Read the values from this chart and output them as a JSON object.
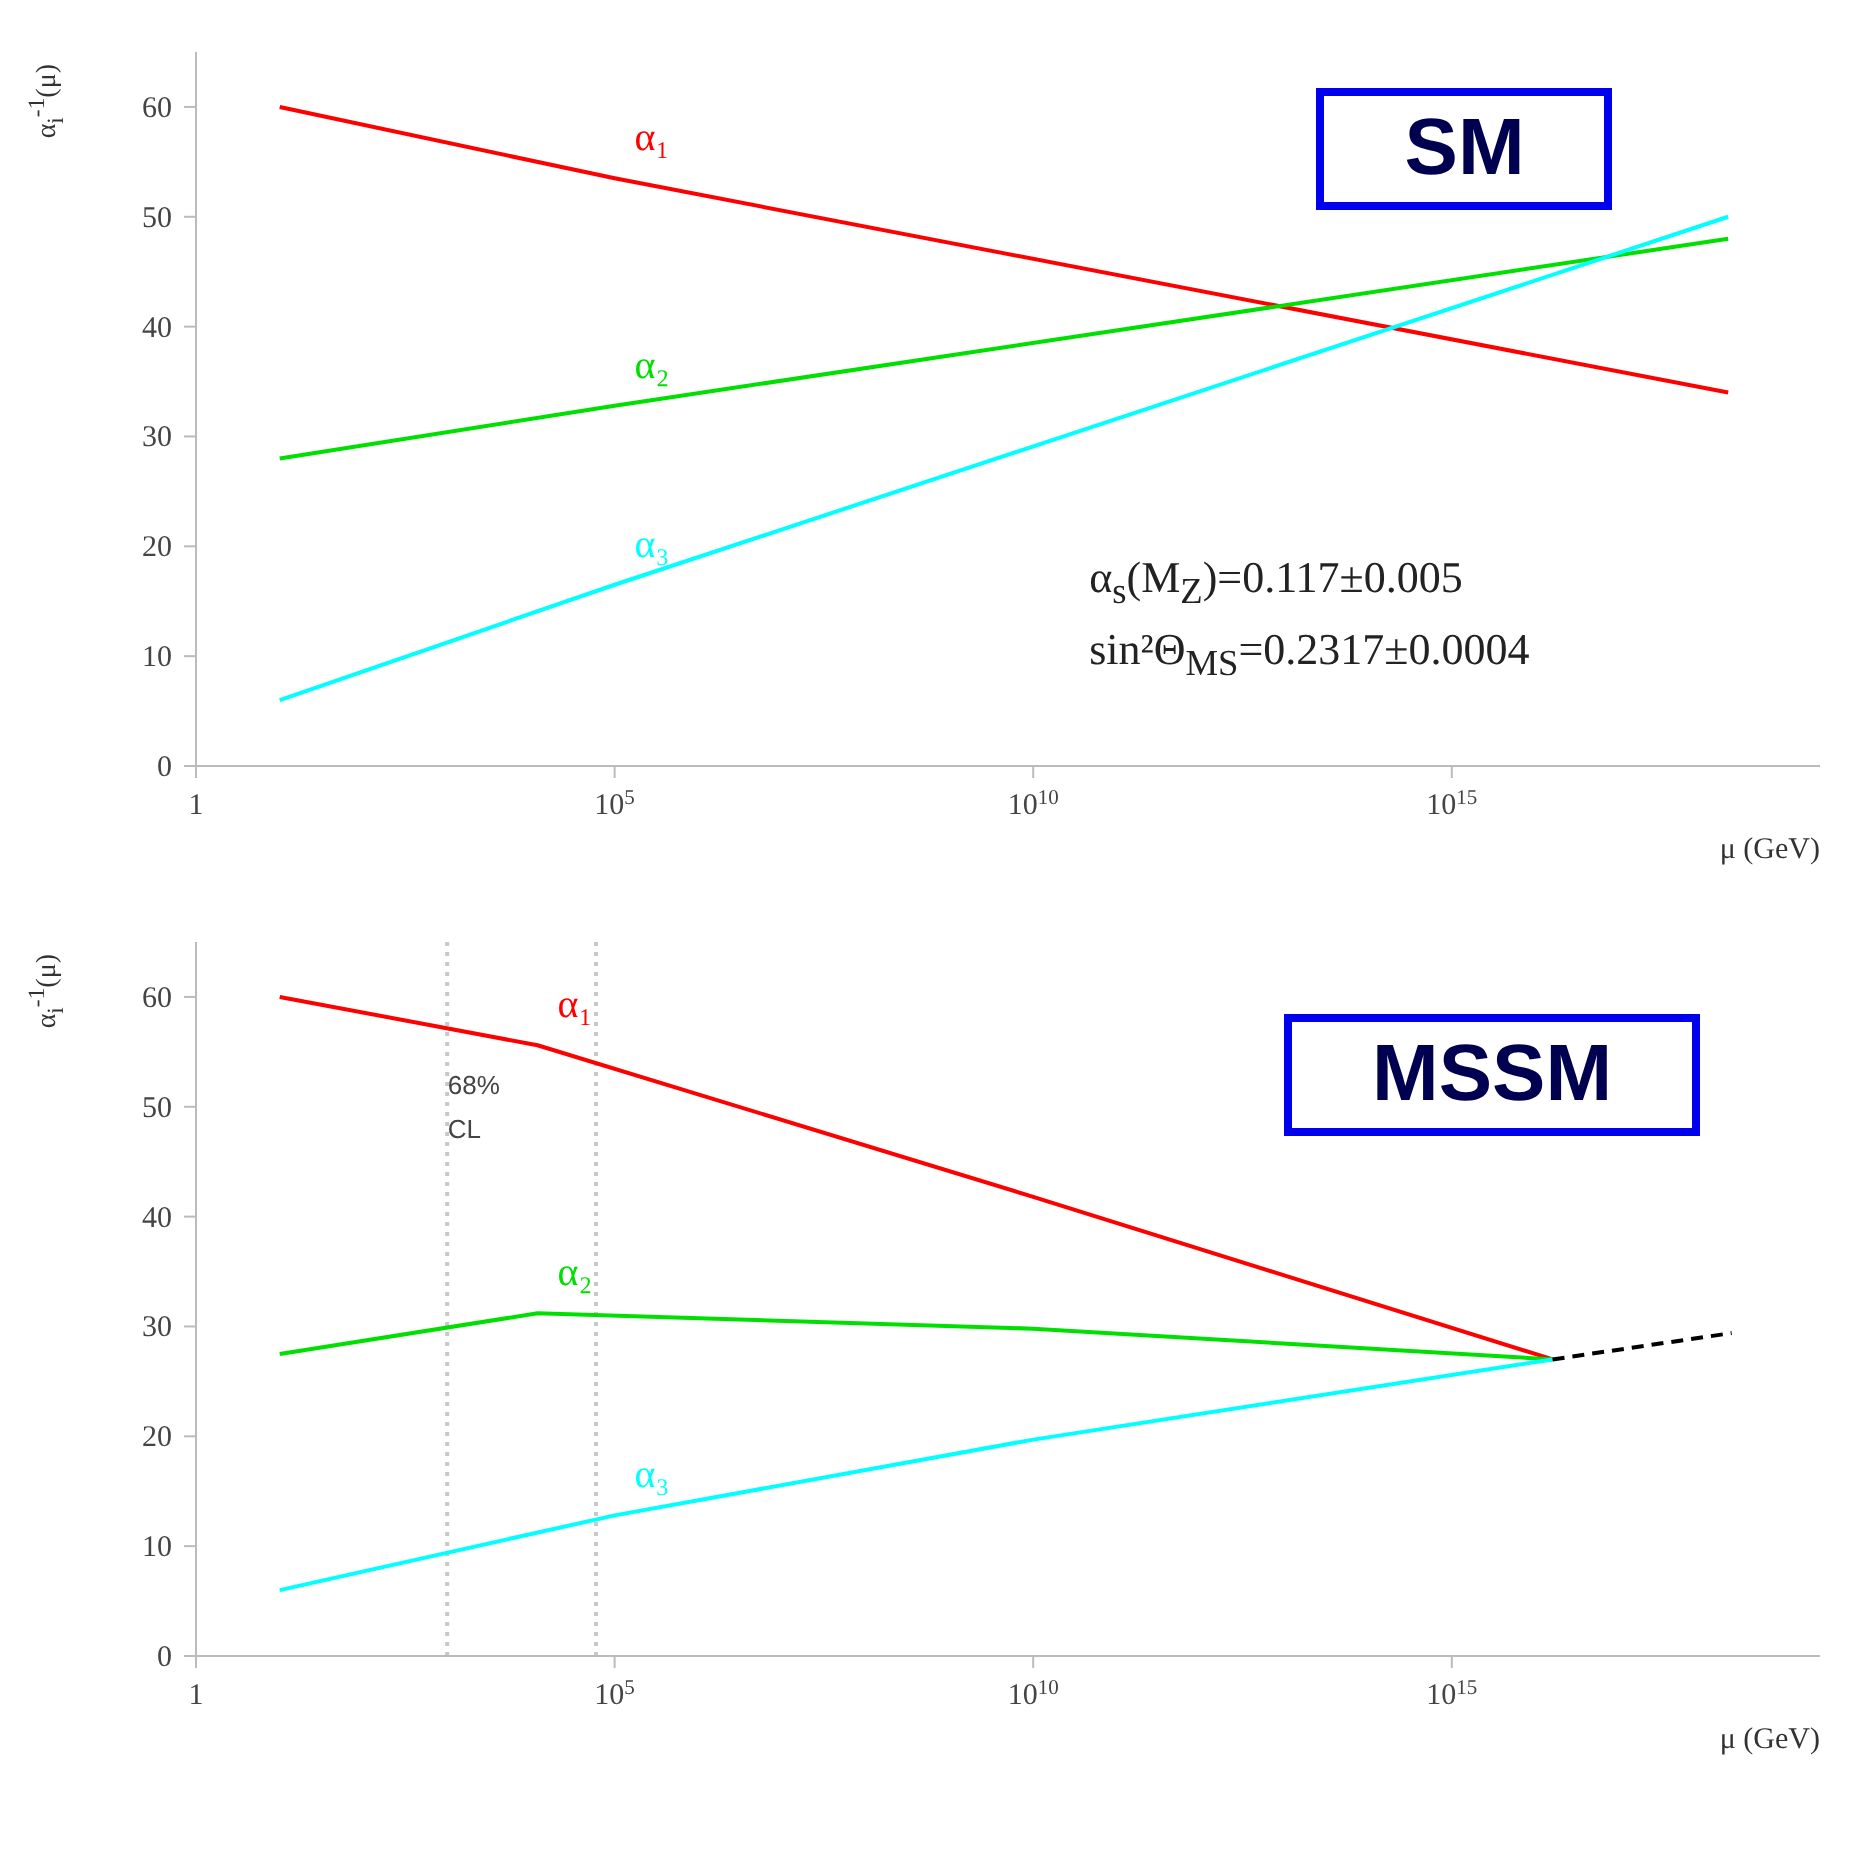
{
  "chart_data": [
    {
      "type": "line",
      "xlabel": "μ (GeV)",
      "ylabel": "α$_{i}$$^{-1}$(μ)",
      "log": "x",
      "xlim": [
        1,
        2.5e+19
      ],
      "ylim": [
        0,
        65
      ],
      "xticks": [
        1,
        {
          "value": 100000,
          "label": "10$^{5}$"
        },
        {
          "value": 10000000000,
          "label": "10$^{10}$"
        },
        {
          "value": 1000000000000000,
          "label": "10$^{15}$"
        }
      ],
      "yticks": [
        0,
        10,
        20,
        30,
        40,
        50,
        60
      ],
      "marker": "none",
      "series": [
        {
          "name": "α₁",
          "color": "#ff0000",
          "x": [
            10,
            100000,
            2e+18
          ],
          "values": [
            60,
            53.5,
            34
          ]
        },
        {
          "name": "α₂",
          "color": "#00e000",
          "x": [
            10,
            100000,
            2e+18
          ],
          "values": [
            28,
            32.8,
            48
          ]
        },
        {
          "name": "α₃",
          "color": "#00ffff",
          "x": [
            10,
            100000,
            2e+18
          ],
          "values": [
            6,
            16.5,
            50
          ]
        }
      ],
      "annotations": [
        "SM",
        "α$_{s}$(M$_{Z}$)=0.117±0.005",
        "sin²Θ$_{MS}$=0.2317±0.0004"
      ]
    },
    {
      "type": "line",
      "xlabel": "μ (GeV)",
      "ylabel": "α$_{i}$$^{-1}$(μ)",
      "log": "x",
      "xlim": [
        1,
        2.5e+19
      ],
      "ylim": [
        0,
        65
      ],
      "xticks": [
        1,
        {
          "value": 100000,
          "label": "10$^{5}$"
        },
        {
          "value": 10000000000,
          "label": "10$^{10}$"
        },
        {
          "value": 1000000000000000,
          "label": "10$^{15}$"
        }
      ],
      "yticks": [
        0,
        10,
        20,
        30,
        40,
        50,
        60
      ],
      "marker": "none",
      "series": [
        {
          "name": "α₁",
          "color": "#ff0000",
          "x": [
            10,
            12000,
            10000000000,
            1.6e+16
          ],
          "values": [
            60,
            55.6,
            41.8,
            27
          ]
        },
        {
          "name": "α₂",
          "color": "#00e000",
          "x": [
            10,
            12000,
            10000000000,
            1.6e+16
          ],
          "values": [
            27.5,
            31.2,
            29.8,
            27
          ]
        },
        {
          "name": "α₃",
          "color": "#00ffff",
          "x": [
            10,
            100000,
            10000000000,
            1.6e+16
          ],
          "values": [
            6,
            12.8,
            19.7,
            27
          ]
        },
        {
          "color": "#000000",
          "line_style": "dashed",
          "x": [
            1.6e+16,
            2.2e+18
          ],
          "values": [
            27,
            29.4
          ]
        }
      ],
      "ref_lines": [
        {
          "axis": "x",
          "value": 1000,
          "color": "#c8c8c8",
          "line_style": "dotted"
        },
        {
          "axis": "x",
          "value": 60000,
          "color": "#c8c8c8",
          "line_style": "dotted"
        }
      ],
      "annotations": [
        "MSSM",
        "68% CL"
      ]
    }
  ]
}
